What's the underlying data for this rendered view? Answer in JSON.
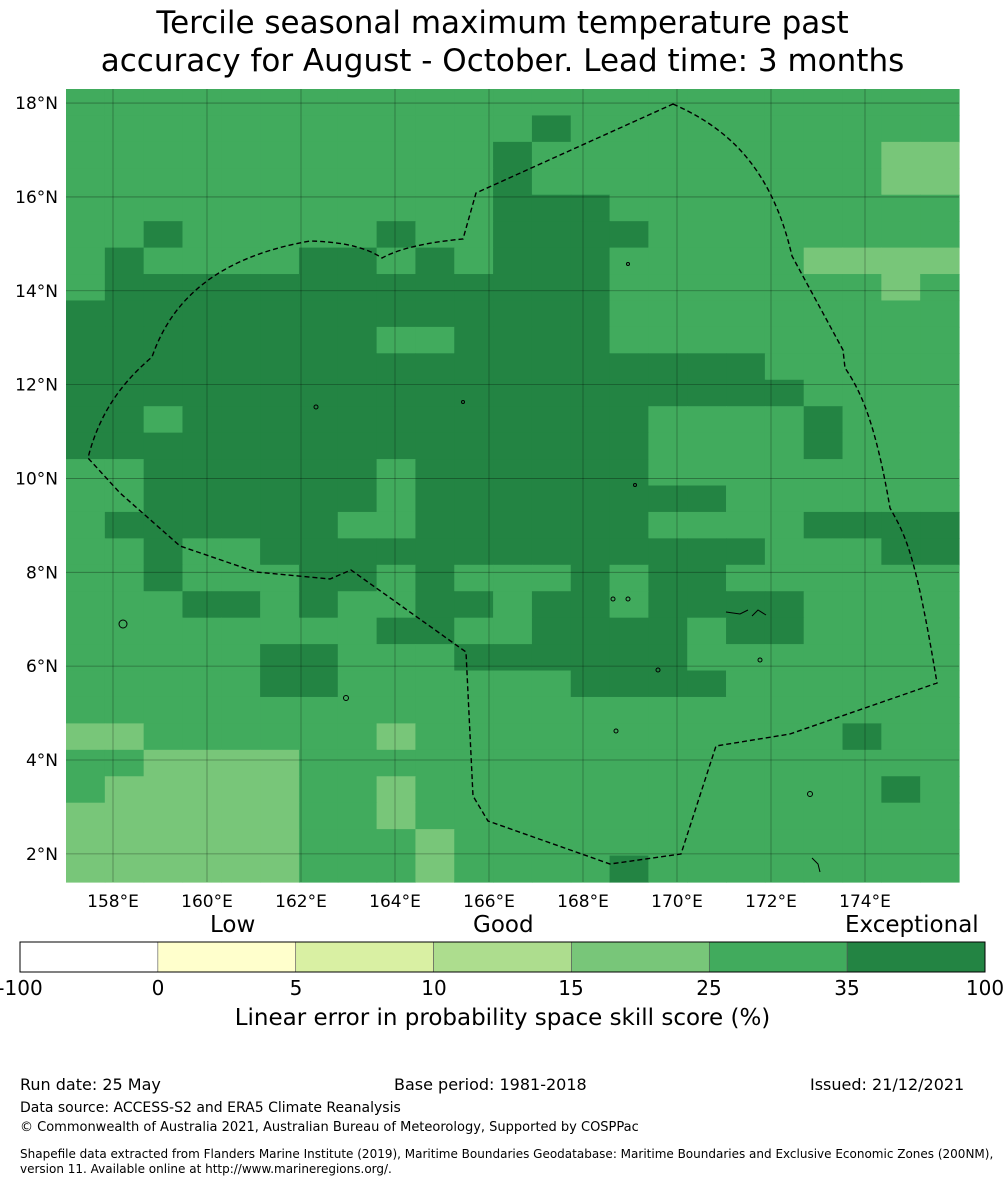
{
  "title_line1": "Tercile seasonal maximum temperature past",
  "title_line2": "accuracy for August - October. Lead time: 3 months",
  "map": {
    "lon_ticks": [
      "158°E",
      "160°E",
      "162°E",
      "164°E",
      "166°E",
      "168°E",
      "170°E",
      "172°E",
      "174°E"
    ],
    "lat_ticks": [
      "18°N",
      "16°N",
      "14°N",
      "12°N",
      "10°N",
      "8°N",
      "6°N",
      "4°N",
      "2°N"
    ],
    "lon_range": [
      157.0,
      176.0
    ],
    "lat_range": [
      1.4,
      18.3
    ],
    "grid": true
  },
  "colorbar": {
    "category_labels": [
      "Low",
      "Good",
      "Exceptional"
    ],
    "ticks": [
      "-100",
      "0",
      "5",
      "10",
      "15",
      "25",
      "35",
      "100"
    ],
    "colors": [
      "#ffffff",
      "#ffffcc",
      "#d9f0a3",
      "#addd8e",
      "#78c679",
      "#41ab5d",
      "#238443"
    ],
    "title": "Linear error in probability space skill score (%)"
  },
  "footer": {
    "run_date": "Run date: 25 May",
    "base_period": "Base period: 1981-2018",
    "issued": "Issued: 21/12/2021",
    "data_source": "Data source: ACCESS-S2 and ERA5 Climate Reanalysis",
    "copyright": "© Commonwealth of Australia 2021, Australian Bureau of Meteorology, Supported by COSPPac",
    "shapefile_line1": "Shapefile data extracted from Flanders Marine Institute (2019), Maritime Boundaries Geodatabase: Maritime Boundaries and Exclusive Economic Zones (200NM),",
    "shapefile_line2": "version 11. Available online at http://www.marineregions.org/."
  }
}
